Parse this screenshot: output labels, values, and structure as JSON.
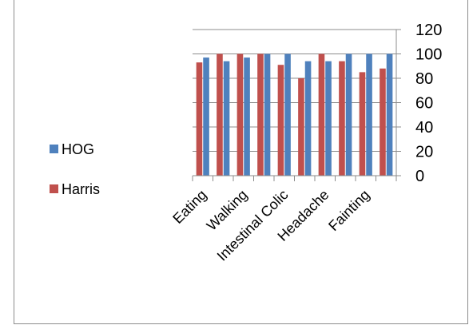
{
  "chart_data": {
    "type": "bar",
    "categories": [
      "Eating",
      "",
      "Walking",
      "",
      "Intestinal Colic",
      "",
      "Headache",
      "",
      "Fainting",
      ""
    ],
    "series": [
      {
        "name": "HOG",
        "color": "#4f81bd",
        "values": [
          97,
          94,
          97,
          100,
          100,
          94,
          94,
          100,
          100,
          100
        ]
      },
      {
        "name": "Harris",
        "color": "#c0504d",
        "values": [
          93,
          100,
          100,
          100,
          91,
          80,
          100,
          94,
          85,
          88
        ]
      }
    ],
    "ylim": [
      0,
      120
    ],
    "yticks": [
      "0",
      "20",
      "40",
      "60",
      "80",
      "100",
      "120"
    ],
    "grid": true,
    "legend_position": "left",
    "title": "",
    "xlabel": "",
    "ylabel": ""
  }
}
